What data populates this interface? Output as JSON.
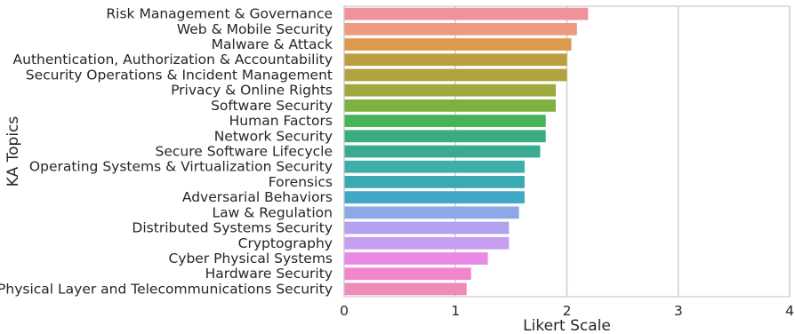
{
  "chart_data": {
    "type": "bar",
    "orientation": "horizontal",
    "xlabel": "Likert Scale",
    "ylabel": "KA Topics",
    "xlim": [
      0,
      4
    ],
    "xticks": [
      "0",
      "1",
      "2",
      "3",
      "4"
    ],
    "grid": true,
    "categories": [
      "Risk Management & Governance",
      "Web & Mobile Security",
      "Malware & Attack",
      "Authentication, Authorization & Accountability",
      "Security Operations & Incident Management",
      "Privacy & Online Rights",
      "Software Security",
      "Human Factors",
      "Network Security",
      "Secure Software Lifecycle",
      "Operating Systems & Virtualization Security",
      "Forensics",
      "Adversarial Behaviors",
      "Law & Regulation",
      "Distributed Systems Security",
      "Cryptography",
      "Cyber Physical Systems",
      "Hardware Security",
      "Physical Layer and Telecommunications Security"
    ],
    "values": [
      2.19,
      2.09,
      2.04,
      2.0,
      2.0,
      1.9,
      1.9,
      1.81,
      1.81,
      1.76,
      1.62,
      1.62,
      1.62,
      1.57,
      1.48,
      1.48,
      1.29,
      1.14,
      1.1
    ],
    "colors": [
      "#f0919b",
      "#ee9a80",
      "#dd9a4e",
      "#bb9e3f",
      "#b1a33d",
      "#9ea93e",
      "#7fb042",
      "#45b357",
      "#3aad7e",
      "#3aab90",
      "#3eaea9",
      "#3ba9b4",
      "#40a8c6",
      "#8da8e6",
      "#b1a1ee",
      "#c89ef0",
      "#e989e5",
      "#f186cc",
      "#f08ab9"
    ]
  }
}
